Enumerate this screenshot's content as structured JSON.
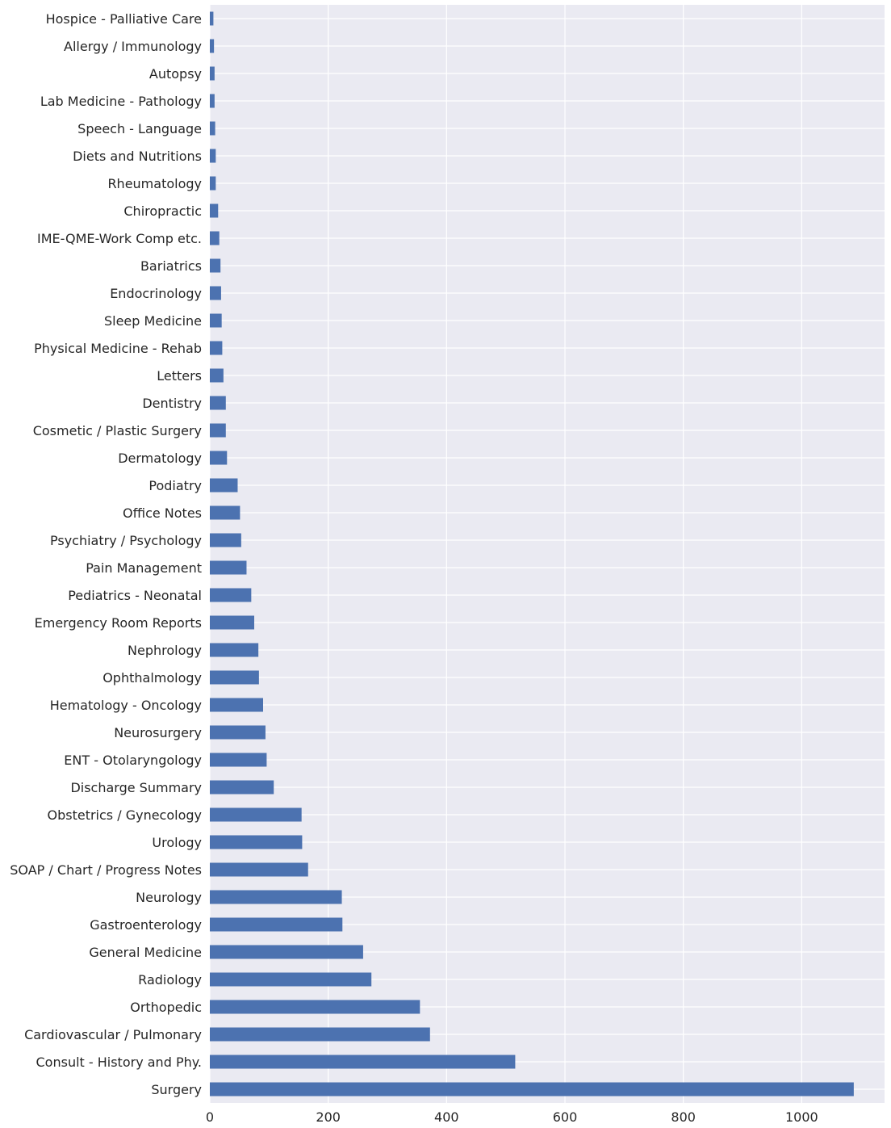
{
  "chart_data": {
    "type": "bar",
    "orientation": "horizontal",
    "title": "",
    "xlabel": "",
    "ylabel": "",
    "categories": [
      "Hospice - Palliative Care",
      "Allergy / Immunology",
      "Autopsy",
      "Lab Medicine - Pathology",
      "Speech - Language",
      "Diets and Nutritions",
      "Rheumatology",
      "Chiropractic",
      "IME-QME-Work Comp etc.",
      "Bariatrics",
      "Endocrinology",
      "Sleep Medicine",
      "Physical Medicine - Rehab",
      "Letters",
      "Dentistry",
      "Cosmetic / Plastic Surgery",
      "Dermatology",
      "Podiatry",
      "Office Notes",
      "Psychiatry / Psychology",
      "Pain Management",
      "Pediatrics - Neonatal",
      "Emergency Room Reports",
      "Nephrology",
      "Ophthalmology",
      "Hematology - Oncology",
      "Neurosurgery",
      "ENT - Otolaryngology",
      "Discharge Summary",
      "Obstetrics / Gynecology",
      "Urology",
      "SOAP / Chart / Progress Notes",
      "Neurology",
      "Gastroenterology",
      "General Medicine",
      "Radiology",
      "Orthopedic",
      "Cardiovascular / Pulmonary",
      "Consult - History and Phy.",
      "Surgery"
    ],
    "values": [
      6,
      7,
      8,
      8,
      9,
      10,
      10,
      14,
      16,
      18,
      19,
      20,
      21,
      23,
      27,
      27,
      29,
      47,
      51,
      53,
      62,
      70,
      75,
      82,
      83,
      90,
      94,
      96,
      108,
      155,
      156,
      166,
      223,
      224,
      259,
      273,
      355,
      372,
      516,
      1088
    ],
    "xlim": [
      0,
      1140
    ],
    "xticks": [
      0,
      200,
      400,
      600,
      800,
      1000
    ],
    "grid": true,
    "legend": "none",
    "colors": {
      "bar": "#4c72b0",
      "background": "#eaeaf2",
      "grid": "#ffffff",
      "text": "#262626"
    }
  }
}
